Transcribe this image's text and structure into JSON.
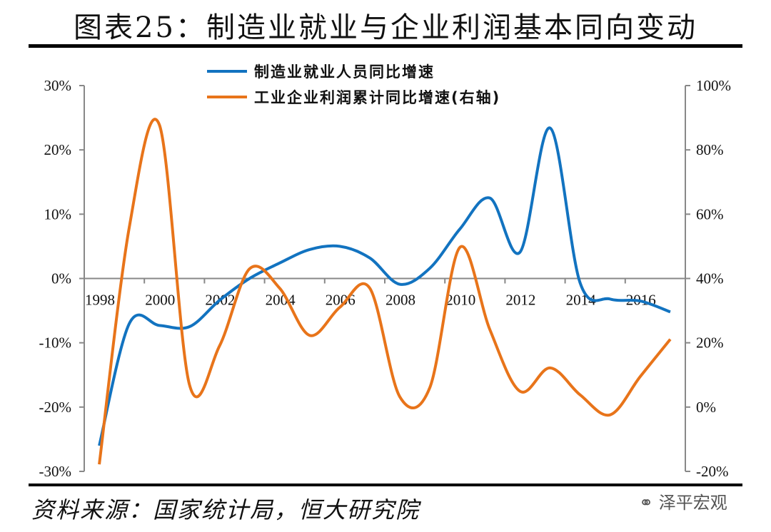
{
  "title": "图表25：制造业就业与企业利润基本同向变动",
  "source": "资料来源：国家统计局，恒大研究院",
  "watermark": "泽平宏观",
  "chart_data": {
    "type": "line",
    "title": "",
    "categories": [
      "1998",
      "1999",
      "2000",
      "2001",
      "2002",
      "2003",
      "2004",
      "2005",
      "2006",
      "2007",
      "2008",
      "2009",
      "2010",
      "2011",
      "2012",
      "2013",
      "2014",
      "2015",
      "2016",
      "2017"
    ],
    "x_tick_labels": [
      "1998",
      "2000",
      "2002",
      "2004",
      "2006",
      "2008",
      "2010",
      "2012",
      "2014",
      "2016"
    ],
    "left_axis": {
      "ylim": [
        -30,
        30
      ],
      "ticks": [
        "30%",
        "20%",
        "10%",
        "0%",
        "-10%",
        "-20%",
        "-30%"
      ]
    },
    "right_axis": {
      "ylim": [
        -20,
        100
      ],
      "ticks": [
        "100%",
        "80%",
        "60%",
        "40%",
        "20%",
        "0%",
        "-20%"
      ]
    },
    "grid": false,
    "legend_position": "top",
    "series": [
      {
        "name": "制造业就业人员同比增速",
        "axis": "left",
        "color": "#1273C0",
        "values": [
          -26.0,
          -7.0,
          -7.3,
          -7.5,
          -3.4,
          0.0,
          2.4,
          4.5,
          5.0,
          3.2,
          -0.9,
          1.6,
          7.7,
          12.5,
          4.1,
          23.4,
          -0.7,
          -3.2,
          -3.5,
          -5.2
        ]
      },
      {
        "name": "工业企业利润累计同比增速(右轴)",
        "axis": "right",
        "color": "#E8741A",
        "values": [
          -17.8,
          56.0,
          87.8,
          7.0,
          19.0,
          43.0,
          37.0,
          22.3,
          31.0,
          37.0,
          3.2,
          6.1,
          49.7,
          24.0,
          4.9,
          12.2,
          3.8,
          -2.4,
          9.5,
          21.1
        ]
      }
    ]
  }
}
